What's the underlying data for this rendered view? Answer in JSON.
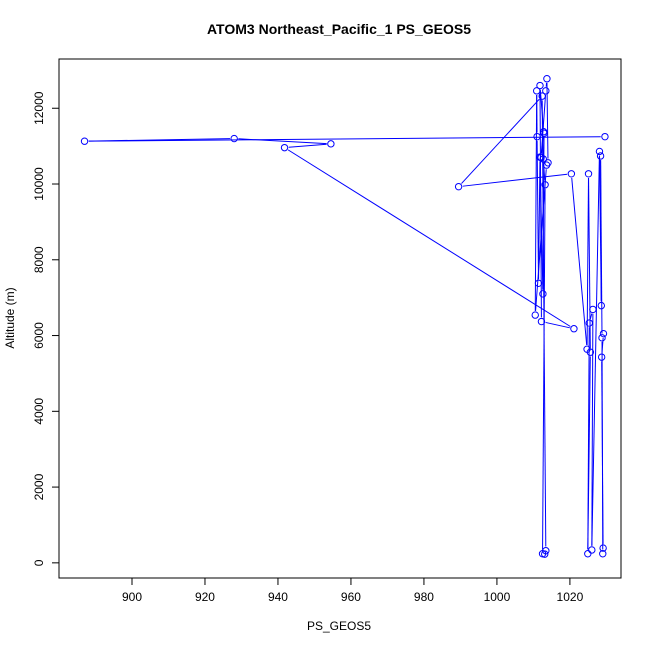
{
  "chart_data": {
    "type": "line",
    "title": "ATOM3 Northeast_Pacific_1 PS_GEOS5",
    "xlabel": "PS_GEOS5",
    "ylabel": "Altitude (m)",
    "xlim": [
      880,
      1034
    ],
    "ylim": [
      -400,
      13300
    ],
    "x_ticks": [
      900,
      920,
      940,
      960,
      980,
      1000,
      1020
    ],
    "y_ticks": [
      0,
      2000,
      4000,
      6000,
      8000,
      10000,
      12000
    ],
    "grid": false,
    "series": [
      {
        "color": "#0000ff",
        "marker": "open-circle",
        "x": [
          1029.6,
          887.0,
          928.0,
          954.5,
          941.8,
          1021.1,
          1012.2,
          1011.8,
          1012.8,
          1012.1,
          1013.4,
          1013.7,
          1014.0,
          1013.6,
          1010.5,
          1010.9,
          1011.0,
          1011.4,
          1011.8,
          1012.6,
          1012.9,
          1012.7,
          1013.2,
          1012.5,
          1013.1,
          1013.4,
          1012.4,
          989.5,
          1020.4,
          1024.7,
          1025.1,
          1025.6,
          1024.9,
          1025.3,
          1026.3,
          1026.0,
          1028.1,
          1028.6,
          1028.4,
          1028.8,
          1029.0,
          1029.1,
          1028.7,
          1029.2
        ],
        "y": [
          11250,
          11130,
          11200,
          11060,
          10960,
          6180,
          6370,
          12600,
          11380,
          10700,
          12460,
          12780,
          10560,
          10500,
          6540,
          12460,
          11250,
          7380,
          10710,
          7100,
          11340,
          10660,
          9980,
          240,
          230,
          320,
          12320,
          9930,
          10270,
          5640,
          10270,
          5560,
          240,
          6330,
          6690,
          340,
          10860,
          6790,
          10740,
          5940,
          240,
          390,
          5430,
          6050
        ]
      }
    ]
  }
}
